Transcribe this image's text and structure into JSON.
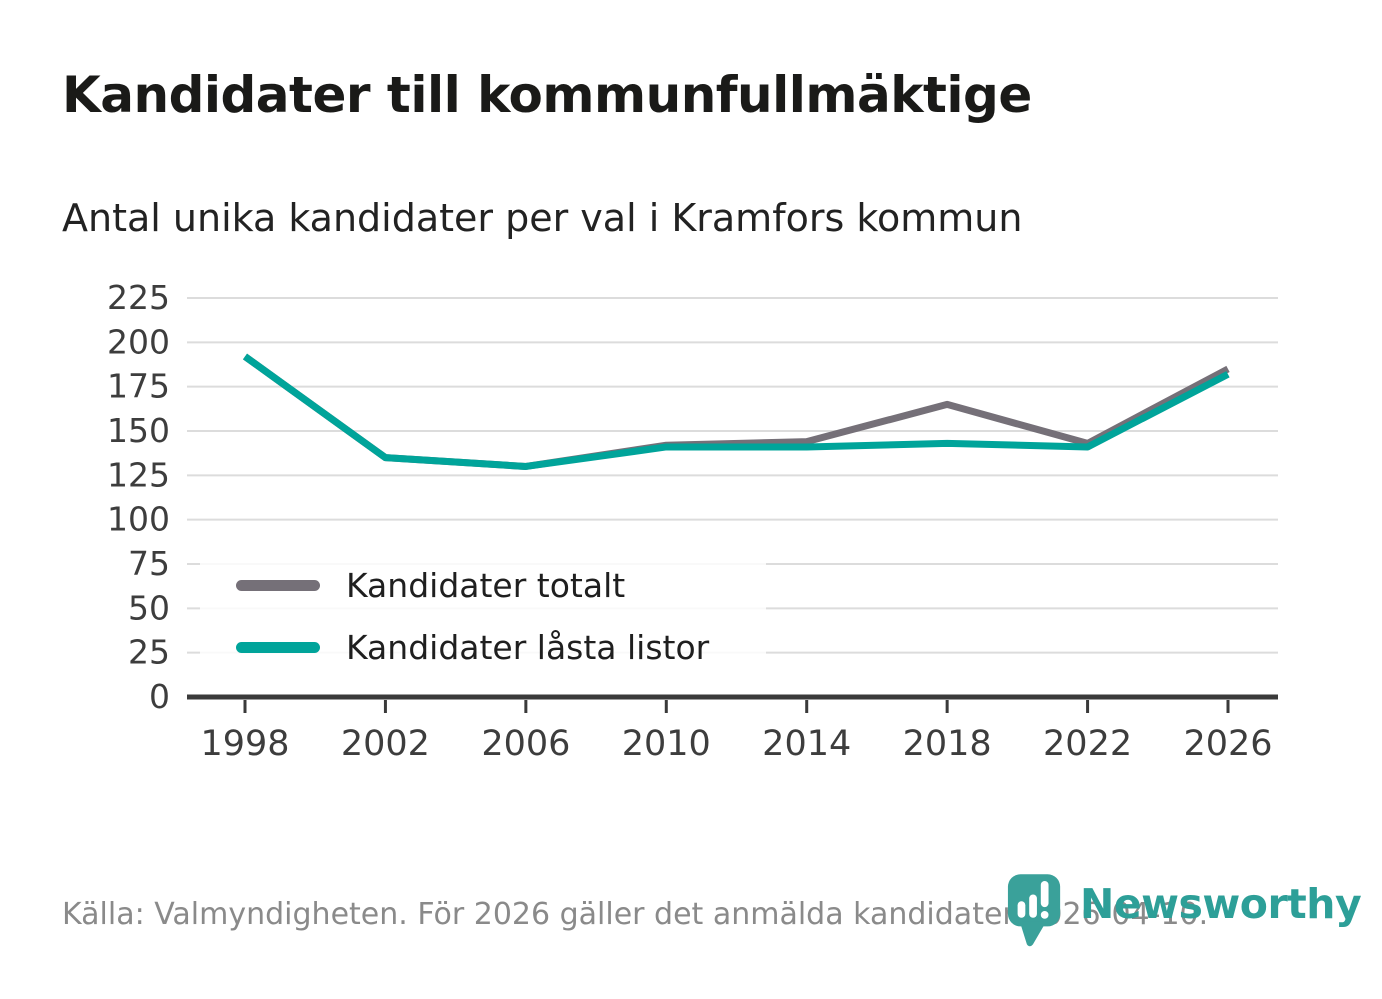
{
  "title": "Kandidater till kommunfullmäktige",
  "subtitle": "Antal unika kandidater per val i Kramfors kommun",
  "footer": {
    "source_text": "Källa: Valmyndigheten. För 2026 gäller det anmälda kandidater 2026-04-10."
  },
  "logo": {
    "name": "Newsworthy",
    "icon": "newsworthy-pin-barchart-icon",
    "color": "#3aa19a"
  },
  "colors": {
    "total_line": "#757078",
    "locked_line": "#00a49a",
    "gridline": "#dcdcdc",
    "axis": "#3a3a3a",
    "tick_label": "#3d3d3d",
    "footer_text": "#8a8a8a",
    "title_text": "#1a1a18"
  },
  "chart_data": {
    "type": "line",
    "x": [
      1998,
      2002,
      2006,
      2010,
      2014,
      2018,
      2022,
      2026
    ],
    "series": [
      {
        "name": "Kandidater totalt",
        "color_key": "total_line",
        "values": [
          192,
          135,
          130,
          142,
          144,
          165,
          143,
          185
        ]
      },
      {
        "name": "Kandidater låsta listor",
        "color_key": "locked_line",
        "values": [
          192,
          135,
          130,
          141,
          141,
          143,
          141,
          182
        ]
      }
    ],
    "ylim": [
      0,
      225
    ],
    "yticks": [
      0,
      25,
      50,
      75,
      100,
      125,
      150,
      175,
      200,
      225
    ],
    "grid": "horizontal",
    "legend_position": "inside-left-bottom",
    "xlabel": "",
    "ylabel": ""
  }
}
